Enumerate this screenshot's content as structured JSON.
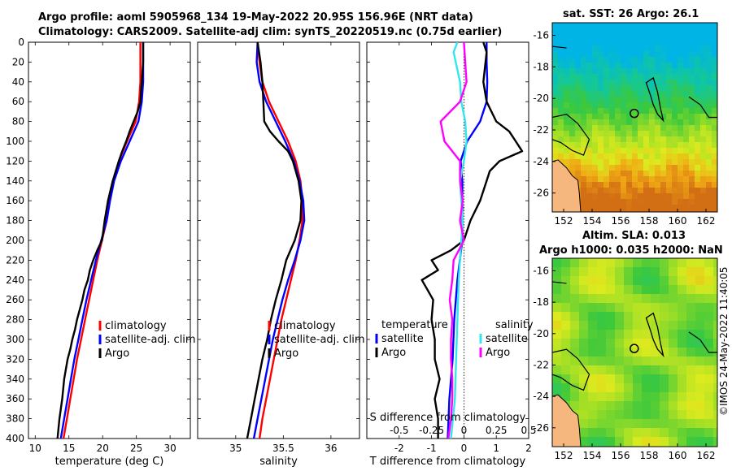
{
  "header": {
    "line1": "Argo profile: aoml 5905968_134 19-May-2022 20.95S 156.96E (NRT data)",
    "line2": "Climatology: CARS2009. Satellite-adj clim: synTS_20220519.nc (0.75d earlier)"
  },
  "sst_title": "sat. SST: 26 Argo: 26.1",
  "altim_title1": "Altim. SLA: 0.013",
  "altim_title2": "Argo h1000: 0.035 h2000: NaN",
  "side_stamp": "©IMOS 24-May-2022 11:40:05",
  "colors": {
    "climatology": "#ff0000",
    "satellite": "#0000ff",
    "argo": "#000000",
    "sat_salinity": "#33e6ee",
    "argo_salinity": "#ff00ff"
  },
  "chart_data": [
    {
      "type": "line",
      "id": "temperature",
      "xlabel": "temperature (deg C)",
      "ylabel": "",
      "xlim": [
        9,
        33
      ],
      "ylim": [
        400,
        0
      ],
      "xticks": [
        "10",
        "15",
        "20",
        "25",
        "30"
      ],
      "xtick_values": [
        10,
        15,
        20,
        25,
        30
      ],
      "yticks": [
        "0",
        "20",
        "40",
        "60",
        "80",
        "100",
        "120",
        "140",
        "160",
        "180",
        "200",
        "220",
        "240",
        "260",
        "280",
        "300",
        "320",
        "340",
        "360",
        "380",
        "400"
      ],
      "legend": [
        "climatology",
        "satellite-adj. clim",
        "Argo"
      ],
      "series": [
        {
          "name": "climatology",
          "color": "#ff0000",
          "depth": [
            0,
            20,
            40,
            60,
            80,
            100,
            120,
            140,
            160,
            180,
            200,
            220,
            240,
            260,
            280,
            300,
            320,
            340,
            360,
            380,
            400
          ],
          "values": [
            25.6,
            25.6,
            25.6,
            25.4,
            24.9,
            23.6,
            22.4,
            21.6,
            21.0,
            20.6,
            19.9,
            19.2,
            18.6,
            18.0,
            17.4,
            16.8,
            16.2,
            15.7,
            15.2,
            14.7,
            14.2
          ]
        },
        {
          "name": "satellite-adj. clim",
          "color": "#0000ff",
          "depth": [
            0,
            20,
            40,
            60,
            80,
            100,
            120,
            140,
            160,
            180,
            200,
            220,
            240,
            260,
            280,
            300,
            320,
            340,
            360,
            380,
            400
          ],
          "values": [
            26.0,
            26.0,
            26.0,
            25.8,
            25.3,
            24.0,
            22.7,
            21.7,
            21.1,
            20.6,
            19.8,
            19.0,
            18.3,
            17.6,
            17.0,
            16.4,
            15.8,
            15.3,
            14.8,
            14.3,
            13.8
          ]
        },
        {
          "name": "Argo",
          "color": "#000000",
          "depth": [
            0,
            20,
            40,
            60,
            70,
            80,
            90,
            100,
            110,
            120,
            140,
            160,
            180,
            200,
            210,
            220,
            230,
            240,
            250,
            260,
            270,
            280,
            290,
            300,
            310,
            320,
            340,
            360,
            380,
            400
          ],
          "values": [
            26.0,
            26.0,
            25.8,
            25.6,
            25.2,
            24.6,
            24.0,
            23.5,
            22.9,
            22.4,
            21.5,
            20.8,
            20.3,
            19.9,
            19.2,
            18.6,
            18.1,
            17.8,
            17.3,
            17.0,
            16.6,
            16.2,
            15.9,
            15.5,
            15.2,
            14.8,
            14.3,
            14.0,
            13.6,
            13.3
          ]
        }
      ]
    },
    {
      "type": "line",
      "id": "salinity",
      "xlabel": "salinity",
      "ylabel": "",
      "xlim": [
        34.6,
        36.3
      ],
      "ylim": [
        400,
        0
      ],
      "xticks": [
        "35",
        "35.5",
        "36"
      ],
      "xtick_values": [
        35,
        35.5,
        36
      ],
      "legend": [
        "climatology",
        "satellite-adj. clim",
        "Argo"
      ],
      "series": [
        {
          "name": "climatology",
          "color": "#ff0000",
          "depth": [
            0,
            20,
            40,
            60,
            80,
            100,
            120,
            140,
            160,
            180,
            200,
            220,
            240,
            260,
            280,
            300,
            320,
            340,
            360,
            380,
            400
          ],
          "values": [
            35.23,
            35.25,
            35.28,
            35.35,
            35.45,
            35.55,
            35.63,
            35.68,
            35.7,
            35.7,
            35.67,
            35.63,
            35.58,
            35.53,
            35.48,
            35.44,
            35.4,
            35.36,
            35.32,
            35.28,
            35.25
          ]
        },
        {
          "name": "satellite-adj. clim",
          "color": "#0000ff",
          "depth": [
            0,
            20,
            40,
            60,
            80,
            100,
            120,
            140,
            160,
            180,
            200,
            220,
            240,
            260,
            280,
            300,
            320,
            340,
            360,
            380,
            400
          ],
          "values": [
            35.23,
            35.22,
            35.25,
            35.32,
            35.42,
            35.52,
            35.61,
            35.67,
            35.71,
            35.72,
            35.68,
            35.62,
            35.55,
            35.49,
            35.44,
            35.39,
            35.35,
            35.31,
            35.27,
            35.23,
            35.19
          ]
        },
        {
          "name": "Argo",
          "color": "#000000",
          "depth": [
            0,
            20,
            40,
            60,
            80,
            90,
            100,
            110,
            120,
            140,
            160,
            180,
            200,
            220,
            240,
            260,
            280,
            300,
            320,
            340,
            360,
            380,
            400
          ],
          "values": [
            35.23,
            35.26,
            35.28,
            35.29,
            35.3,
            35.36,
            35.45,
            35.55,
            35.6,
            35.66,
            35.69,
            35.68,
            35.62,
            35.53,
            35.48,
            35.42,
            35.37,
            35.33,
            35.28,
            35.24,
            35.2,
            35.16,
            35.12
          ]
        }
      ]
    },
    {
      "type": "line",
      "id": "difference",
      "xlabel": "T difference from climatology",
      "x2label": "S difference from climatology",
      "xlim": [
        -3,
        2
      ],
      "ylim": [
        400,
        0
      ],
      "xticks": [
        "-2",
        "-1",
        "0",
        "1",
        "2"
      ],
      "xtick_values": [
        -2,
        -1,
        0,
        1,
        2
      ],
      "x2ticks": [
        "-0.5",
        "-0.25",
        "0",
        "0.25",
        "0.5"
      ],
      "x2tick_values": [
        -0.5,
        -0.25,
        0,
        0.25,
        0.5
      ],
      "legend_temperature_title": "temperature",
      "legend_salinity_title": "salinity",
      "legend_temperature": [
        "satellite",
        "Argo"
      ],
      "legend_salinity": [
        "satellite",
        "Argo"
      ],
      "series": [
        {
          "name": "temperature satellite",
          "color": "#0000ff",
          "depth": [
            0,
            20,
            40,
            60,
            80,
            100,
            120,
            140,
            160,
            180,
            200,
            240,
            280,
            320,
            360,
            400
          ],
          "values": [
            0.7,
            0.7,
            0.72,
            0.7,
            0.5,
            0.1,
            -0.1,
            -0.05,
            -0.05,
            -0.05,
            -0.05,
            -0.2,
            -0.3,
            -0.35,
            -0.45,
            -0.5
          ]
        },
        {
          "name": "temperature Argo",
          "color": "#000000",
          "depth": [
            0,
            10,
            40,
            60,
            80,
            90,
            100,
            110,
            120,
            130,
            140,
            160,
            180,
            200,
            210,
            220,
            230,
            240,
            260,
            280,
            300,
            320,
            340,
            360,
            380,
            400
          ],
          "values": [
            0.6,
            0.7,
            0.6,
            0.7,
            1.0,
            1.4,
            1.6,
            1.8,
            1.1,
            0.8,
            0.7,
            0.5,
            0.2,
            0.0,
            -0.4,
            -1.0,
            -0.8,
            -1.3,
            -0.95,
            -1.0,
            -0.9,
            -0.9,
            -0.75,
            -0.9,
            -0.8,
            -0.8
          ]
        },
        {
          "name": "salinity satellite",
          "color": "#33e6ee",
          "depth": [
            0,
            10,
            40,
            60,
            80,
            100,
            120,
            140,
            160,
            180,
            200,
            220,
            240,
            280,
            320,
            360,
            400
          ],
          "values": [
            -0.05,
            -0.08,
            -0.03,
            -0.02,
            0.01,
            0.02,
            0.0,
            -0.03,
            -0.02,
            -0.01,
            -0.02,
            -0.03,
            -0.04,
            -0.05,
            -0.06,
            -0.07,
            -0.1
          ]
        },
        {
          "name": "salinity Argo",
          "color": "#ff00ff",
          "depth": [
            0,
            40,
            60,
            80,
            100,
            120,
            140,
            160,
            180,
            200,
            220,
            240,
            260,
            280,
            300,
            320,
            340,
            360,
            380,
            400
          ],
          "values": [
            0.0,
            0.02,
            -0.03,
            -0.18,
            -0.15,
            -0.03,
            -0.03,
            -0.01,
            -0.03,
            0.0,
            -0.08,
            -0.09,
            -0.11,
            -0.09,
            -0.1,
            -0.1,
            -0.09,
            -0.09,
            -0.1,
            -0.12
          ]
        }
      ]
    },
    {
      "type": "heatmap",
      "id": "sst_map",
      "title": "sat. SST: 26 Argo: 26.1",
      "xlim": [
        151.2,
        162.8
      ],
      "ylim": [
        -27.2,
        -15.2
      ],
      "xticks": [
        "152",
        "154",
        "156",
        "158",
        "160",
        "162"
      ],
      "xtick_values": [
        152,
        154,
        156,
        158,
        160,
        162
      ],
      "yticks": [
        "-16",
        "-18",
        "-20",
        "-22",
        "-24",
        "-26"
      ],
      "ytick_values": [
        -16,
        -18,
        -20,
        -22,
        -24,
        -26
      ],
      "argo_position": [
        156.96,
        -20.95
      ]
    },
    {
      "type": "heatmap",
      "id": "sla_map",
      "title": "Altim. SLA: 0.013",
      "xlim": [
        151.2,
        162.8
      ],
      "ylim": [
        -27.2,
        -15.2
      ],
      "xticks": [
        "152",
        "154",
        "156",
        "158",
        "160",
        "162"
      ],
      "xtick_values": [
        152,
        154,
        156,
        158,
        160,
        162
      ],
      "yticks": [
        "-16",
        "-18",
        "-20",
        "-22",
        "-24",
        "-26"
      ],
      "ytick_values": [
        -16,
        -18,
        -20,
        -22,
        -24,
        -26
      ],
      "argo_position": [
        156.96,
        -20.95
      ]
    }
  ]
}
